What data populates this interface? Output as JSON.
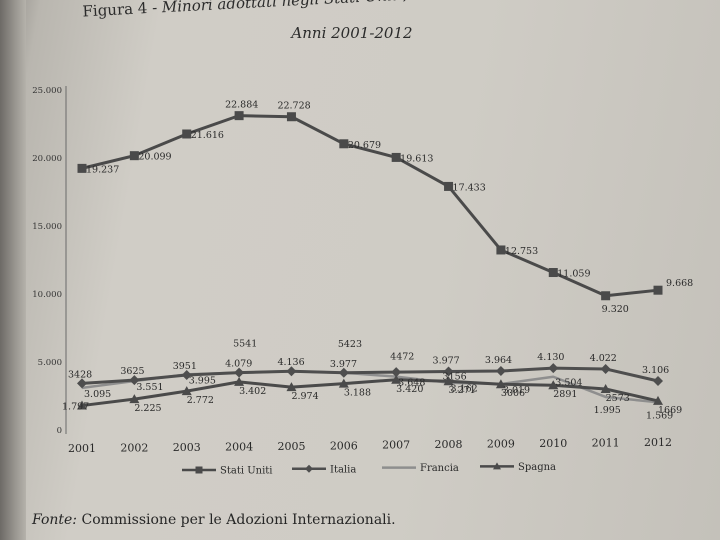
{
  "title": {
    "figure_label": "Figura 4 -",
    "line1": "Minori adottati negli Stati Uniti, in Italia e in Francia",
    "line2": "Anni 2001-2012"
  },
  "source": {
    "label": "Fonte:",
    "text": "Commissione per le Adozioni Internazionali."
  },
  "chart_data": {
    "type": "line",
    "title": "Minori adottati negli Stati Uniti, in Italia e in Francia",
    "subtitle": "Anni 2001-2012",
    "xlabel": "",
    "ylabel": "",
    "categories": [
      "2001",
      "2002",
      "2003",
      "2004",
      "2005",
      "2006",
      "2007",
      "2008",
      "2009",
      "2010",
      "2011",
      "2012"
    ],
    "y_ticks": [
      "0",
      "5.000",
      "10.000",
      "15.000",
      "20.000",
      "25.000"
    ],
    "y_tick_values": [
      0,
      5000,
      10000,
      15000,
      20000,
      25000
    ],
    "ylim": [
      0,
      25000
    ],
    "grid": false,
    "legend_position": "bottom",
    "series": [
      {
        "name": "Stati Uniti",
        "color": "#4a4a4a",
        "marker": "square",
        "values": [
          19237,
          20099,
          21616,
          22884,
          22728,
          20679,
          19613,
          17433,
          12753,
          11059,
          9320,
          9668
        ],
        "labels": [
          "19.237",
          "20.099",
          "21.616",
          "22.884",
          "22.728",
          "20.679",
          "19.613",
          "17.433",
          "12.753",
          "11.059",
          "9.320",
          "9.668"
        ]
      },
      {
        "name": "Italia",
        "color": "#4e4e4e",
        "marker": "diamond",
        "values": [
          3428,
          3625,
          3951,
          4079,
          4136,
          3977,
          3977,
          3977,
          3964,
          4130,
          4022,
          3106
        ],
        "labels": [
          "3428",
          "3625",
          "3951",
          "4.079",
          "4.136",
          "3.977",
          "",
          "3.977",
          "3.964",
          "4.130",
          "4.022",
          "3.106"
        ]
      },
      {
        "name": "Francia",
        "color": "#8e8e8e",
        "marker": "none",
        "values": [
          3095,
          3551,
          3995,
          4079,
          4136,
          3977,
          3648,
          3162,
          3019,
          3504,
          1995,
          1569
        ],
        "labels": [
          "3.095",
          "3.551",
          "3.995",
          "",
          "",
          "",
          "3.648",
          "3.162",
          "3.019",
          "3.504",
          "1.995",
          "1.569"
        ]
      },
      {
        "name": "Spagna",
        "color": "#4a4a4a",
        "marker": "triangle",
        "values": [
          1797,
          2225,
          2772,
          3402,
          2974,
          3188,
          3420,
          3271,
          3006,
          2891,
          2573,
          1669
        ],
        "labels": [
          "1.797",
          "2.225",
          "2.772",
          "3.402",
          "2.974",
          "3.188",
          "3.420",
          "3.271",
          "3006",
          "2891",
          "2573",
          "1669"
        ]
      }
    ],
    "annotations": [
      "5541",
      "5423",
      "4472",
      "3156"
    ]
  }
}
